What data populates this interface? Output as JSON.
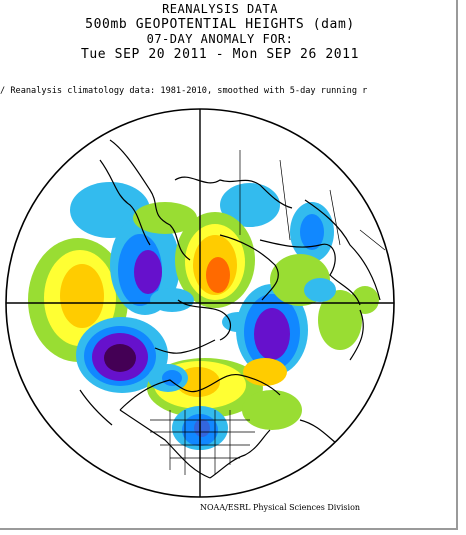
{
  "header": {
    "line1": "REANALYSIS DATA",
    "line2": "500mb GEOPOTENTIAL HEIGHTS (dam)",
    "line3": "07-DAY ANOMALY FOR:",
    "line4": "Tue SEP 20 2011 - Mon SEP 26 2011",
    "subline": "/ Reanalysis climatology data: 1981-2010, smoothed with 5-day running r"
  },
  "map": {
    "projection": "polar stereographic (Northern Hemisphere)",
    "palette": {
      "strong_positive": "#ff6a00",
      "positive": "#ffcc00",
      "weak_positive": "#ffff33",
      "slight_positive": "#99dd33",
      "slight_negative": "#33bbee",
      "weak_negative": "#1188ff",
      "negative": "#3366dd",
      "strong_negative": "#6611cc",
      "extreme_negative": "#440055"
    }
  },
  "credit": "NOAA/ESRL Physical Sciences Division"
}
